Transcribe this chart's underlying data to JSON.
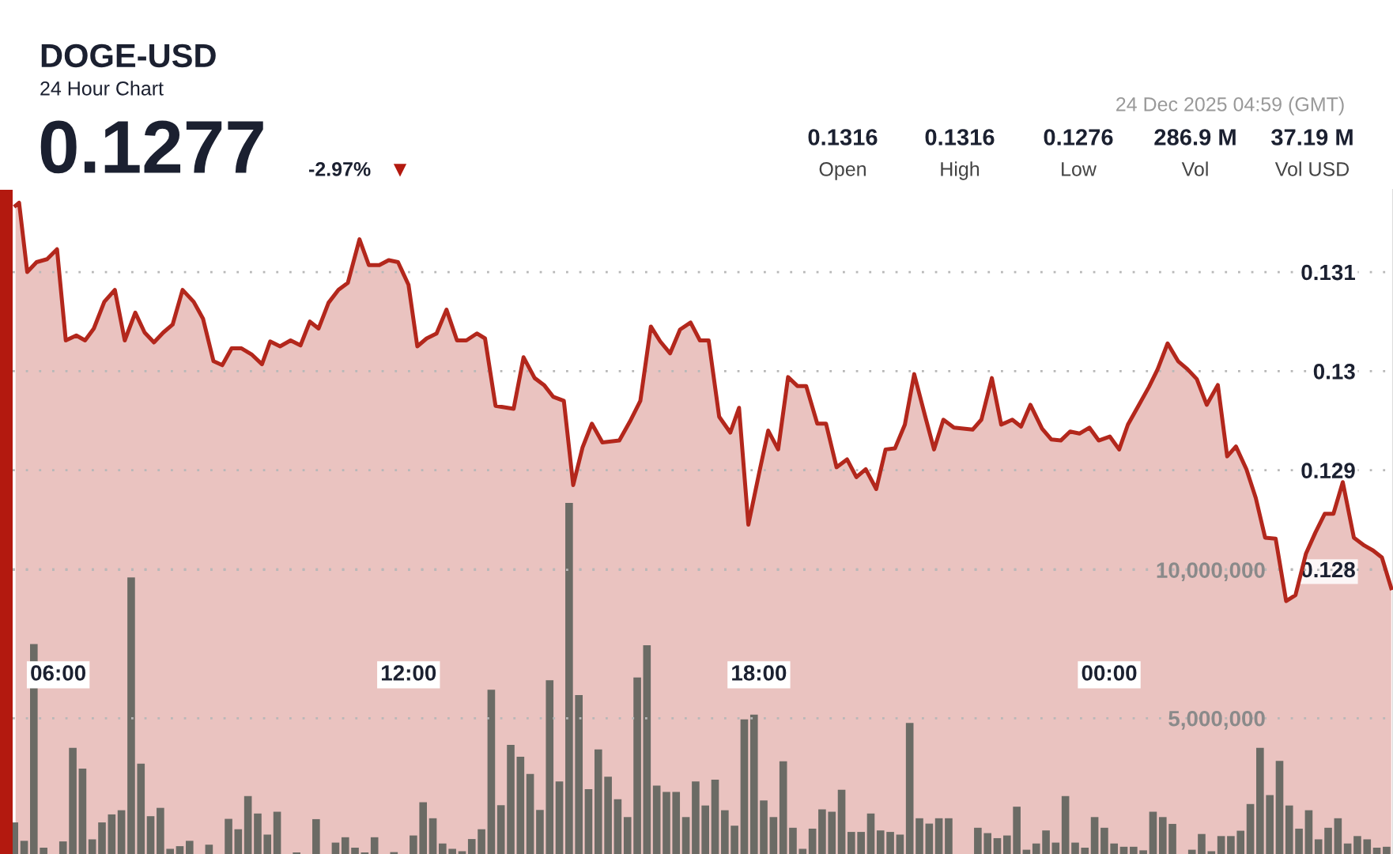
{
  "chart_data": {
    "type": "area",
    "title": "DOGE-USD",
    "subtitle": "24 Hour Chart",
    "annotations": [
      "0.1277",
      "-2.97%",
      "▼",
      "0.1316",
      "Open",
      "0.1316",
      "High",
      "0.1276",
      "Low",
      "286.9 M",
      "Vol",
      "37.19 M",
      "Vol USD",
      "24 Dec 2025 04:59 (GMT)"
    ],
    "xlim": [
      5.22,
      28.86
    ],
    "xticks": [
      {
        "value": 6,
        "label": "06:00"
      },
      {
        "value": 12,
        "label": "12:00"
      },
      {
        "value": 18,
        "label": "18:00"
      },
      {
        "value": 24,
        "label": "00:00"
      }
    ],
    "ylim": [
      0.125,
      0.13183
    ],
    "yticks": [
      0.128,
      0.129,
      0.13,
      0.131
    ],
    "y2lim": [
      0,
      22800000
    ],
    "y2ticks": [
      {
        "value": 5000000,
        "label": "5,000,000"
      },
      {
        "value": 10000000,
        "label": "10,000,000"
      }
    ],
    "grid": "y",
    "legend": false,
    "series": [
      {
        "color": "#b3271c",
        "x": [
          5.27,
          5.33,
          5.47,
          5.63,
          5.81,
          5.98,
          6.13,
          6.31,
          6.46,
          6.61,
          6.79,
          6.97,
          7.14,
          7.32,
          7.48,
          7.64,
          7.8,
          7.96,
          8.13,
          8.32,
          8.48,
          8.66,
          8.81,
          8.97,
          9.14,
          9.31,
          9.49,
          9.63,
          9.8,
          9.98,
          10.15,
          10.31,
          10.46,
          10.63,
          10.8,
          10.96,
          11.16,
          11.32,
          11.5,
          11.66,
          11.82,
          12.0,
          12.15,
          12.31,
          12.48,
          12.65,
          12.83,
          12.99,
          13.17,
          13.31,
          13.49,
          13.8,
          13.97,
          14.16,
          14.32,
          14.48,
          14.66,
          14.82,
          14.98,
          15.14,
          15.32,
          15.61,
          15.79,
          15.97,
          16.15,
          16.31,
          16.48,
          16.65,
          16.83,
          16.99,
          17.14,
          17.32,
          17.51,
          17.66,
          17.82,
          18.0,
          18.16,
          18.33,
          18.5,
          18.66,
          18.81,
          19.0,
          19.15,
          19.33,
          19.51,
          19.67,
          19.83,
          20.01,
          20.17,
          20.33,
          20.5,
          20.66,
          20.85,
          21.0,
          21.16,
          21.34,
          21.66,
          21.81,
          21.99,
          22.15,
          22.34,
          22.49,
          22.65,
          22.85,
          23.01,
          23.17,
          23.33,
          23.49,
          23.66,
          23.82,
          24.01,
          24.17,
          24.32,
          24.5,
          24.68,
          24.83,
          25.0,
          25.18,
          25.34,
          25.5,
          25.67,
          25.86,
          26.02,
          26.17,
          26.35,
          26.51,
          26.67,
          26.85,
          27.03,
          27.19,
          27.37,
          27.53,
          27.69,
          27.84,
          28.0,
          28.19,
          28.37,
          28.52,
          28.67,
          28.83
        ],
        "values": [
          0.13167,
          0.1317,
          0.131,
          0.1311,
          0.13113,
          0.13123,
          0.13031,
          0.13036,
          0.13031,
          0.13043,
          0.1307,
          0.13082,
          0.13031,
          0.13059,
          0.13039,
          0.13029,
          0.13039,
          0.13047,
          0.13082,
          0.1307,
          0.13053,
          0.1301,
          0.13006,
          0.13023,
          0.13023,
          0.13017,
          0.13007,
          0.1303,
          0.13025,
          0.13031,
          0.13026,
          0.1305,
          0.13043,
          0.13069,
          0.13082,
          0.13089,
          0.13133,
          0.13107,
          0.13107,
          0.13112,
          0.1311,
          0.13087,
          0.13025,
          0.13033,
          0.13038,
          0.13062,
          0.13031,
          0.13031,
          0.13038,
          0.13033,
          0.12965,
          0.12962,
          0.13014,
          0.12993,
          0.12986,
          0.12974,
          0.1297,
          0.12885,
          0.12923,
          0.12947,
          0.12928,
          0.1293,
          0.12949,
          0.1297,
          0.13045,
          0.1303,
          0.13018,
          0.13042,
          0.13049,
          0.13031,
          0.13031,
          0.12954,
          0.12938,
          0.12963,
          0.12845,
          0.12896,
          0.1294,
          0.12921,
          0.12994,
          0.12985,
          0.12985,
          0.12947,
          0.12947,
          0.12903,
          0.12911,
          0.12893,
          0.12901,
          0.12881,
          0.12921,
          0.12922,
          0.12946,
          0.12997,
          0.12954,
          0.12921,
          0.12951,
          0.12943,
          0.12941,
          0.12951,
          0.12993,
          0.12946,
          0.12951,
          0.12944,
          0.12966,
          0.12942,
          0.12931,
          0.1293,
          0.12939,
          0.12937,
          0.12943,
          0.1293,
          0.12934,
          0.12921,
          0.12946,
          0.12965,
          0.12984,
          0.13002,
          0.13028,
          0.1301,
          0.13002,
          0.12992,
          0.12966,
          0.12986,
          0.12914,
          0.12924,
          0.12901,
          0.12872,
          0.12832,
          0.12831,
          0.12768,
          0.12774,
          0.12816,
          0.12837,
          0.12856,
          0.12856,
          0.12888,
          0.12832,
          0.12824,
          0.12819,
          0.12812,
          0.12781
        ]
      },
      {
        "type": "bar",
        "axis": "y2",
        "color": "#6b6b65",
        "x": [
          5.25,
          5.417,
          5.583,
          5.75,
          5.917,
          6.083,
          6.25,
          6.417,
          6.583,
          6.75,
          6.917,
          7.083,
          7.25,
          7.417,
          7.583,
          7.75,
          7.917,
          8.083,
          8.25,
          8.417,
          8.583,
          8.75,
          8.917,
          9.083,
          9.25,
          9.417,
          9.583,
          9.75,
          9.917,
          10.083,
          10.25,
          10.417,
          10.583,
          10.75,
          10.917,
          11.083,
          11.25,
          11.417,
          11.583,
          11.75,
          11.917,
          12.083,
          12.25,
          12.417,
          12.583,
          12.75,
          12.917,
          13.083,
          13.25,
          13.417,
          13.583,
          13.75,
          13.917,
          14.083,
          14.25,
          14.417,
          14.583,
          14.75,
          14.917,
          15.083,
          15.25,
          15.417,
          15.583,
          15.75,
          15.917,
          16.083,
          16.25,
          16.417,
          16.583,
          16.75,
          16.917,
          17.083,
          17.25,
          17.417,
          17.583,
          17.75,
          17.917,
          18.083,
          18.25,
          18.417,
          18.583,
          18.75,
          18.917,
          19.083,
          19.25,
          19.417,
          19.583,
          19.75,
          19.917,
          20.083,
          20.25,
          20.417,
          20.583,
          20.75,
          20.917,
          21.083,
          21.25,
          21.417,
          21.583,
          21.75,
          21.917,
          22.083,
          22.25,
          22.417,
          22.583,
          22.75,
          22.917,
          23.083,
          23.25,
          23.417,
          23.583,
          23.75,
          23.917,
          24.083,
          24.25,
          24.417,
          24.583,
          24.75,
          24.917,
          25.083,
          25.25,
          25.417,
          25.583,
          25.75,
          25.917,
          26.083,
          26.25,
          26.417,
          26.583,
          26.75,
          26.917,
          27.083,
          27.25,
          27.417,
          27.583,
          27.75,
          27.917,
          28.083,
          28.25,
          28.417,
          28.583,
          28.75
        ],
        "values": [
          1490000,
          870000,
          7500000,
          640000,
          null,
          850000,
          4000000,
          3300000,
          920000,
          1490000,
          1760000,
          1900000,
          9740000,
          3470000,
          1700000,
          1980000,
          600000,
          690000,
          870000,
          null,
          740000,
          null,
          1610000,
          1260000,
          2380000,
          1790000,
          1080000,
          1850000,
          null,
          480000,
          null,
          1600000,
          null,
          810000,
          990000,
          640000,
          480000,
          990000,
          null,
          490000,
          null,
          1050000,
          2170000,
          1630000,
          780000,
          600000,
          520000,
          930000,
          1260000,
          5960000,
          2070000,
          4100000,
          3700000,
          3120000,
          1910000,
          6280000,
          2870000,
          12250000,
          5780000,
          2610000,
          3950000,
          3030000,
          2270000,
          1670000,
          6370000,
          7460000,
          2730000,
          2520000,
          2520000,
          1670000,
          2870000,
          2060000,
          2930000,
          1900000,
          1380000,
          4960000,
          5120000,
          2230000,
          1670000,
          3550000,
          1310000,
          600000,
          1280000,
          1930000,
          1850000,
          2590000,
          1170000,
          1170000,
          1790000,
          1220000,
          1170000,
          1080000,
          4840000,
          1630000,
          1450000,
          1630000,
          1630000,
          null,
          null,
          1310000,
          1130000,
          960000,
          1050000,
          2020000,
          570000,
          780000,
          1220000,
          810000,
          2380000,
          810000,
          640000,
          1670000,
          1310000,
          780000,
          670000,
          670000,
          550000,
          1850000,
          1670000,
          1440000,
          null,
          570000,
          1100000,
          520000,
          1030000,
          1030000,
          1210000,
          2110000,
          4000000,
          2410000,
          3560000,
          2060000,
          1280000,
          1900000,
          920000,
          1310000,
          1630000,
          780000,
          1030000,
          920000,
          640000,
          670000
        ]
      }
    ]
  }
}
